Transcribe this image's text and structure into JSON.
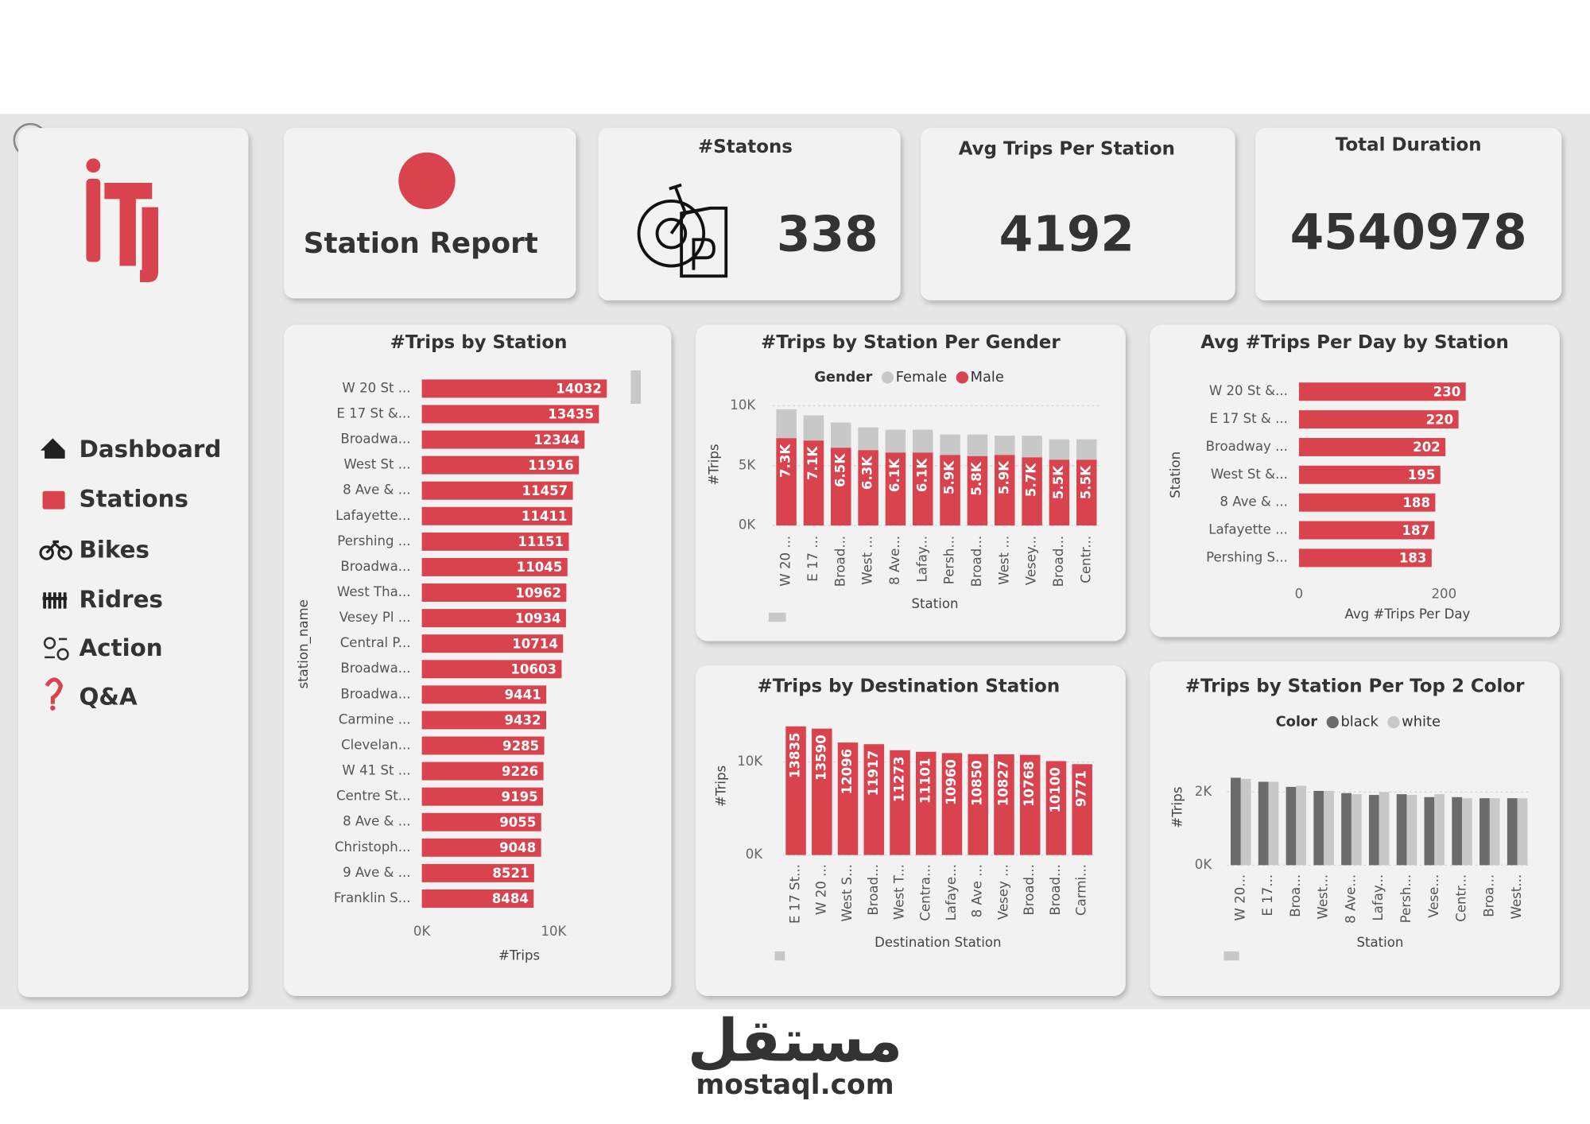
{
  "nav": {
    "items": [
      "Dashboard",
      "Stations",
      "Bikes",
      "Ridres",
      "Action",
      "Q&A"
    ],
    "active": 1
  },
  "header": {
    "title": "Station Report"
  },
  "kpis": [
    {
      "label": "#Statons",
      "value": 338
    },
    {
      "label": "Avg Trips Per Station",
      "value": 4192
    },
    {
      "label": "Total Duration",
      "value": 4540978
    }
  ],
  "watermark": {
    "arabic": "مستقل",
    "text": "mostaql.com"
  },
  "chart_data": [
    {
      "type": "bar",
      "horizontal": true,
      "title": "#Trips by Station",
      "color": "#d9434e",
      "data_labels": true,
      "categories": [
        "W 20 St ...",
        "E 17 St &...",
        "Broadwa...",
        "West St ...",
        "8 Ave & ...",
        "Lafayette...",
        "Pershing ...",
        "Broadwa...",
        "West Tha...",
        "Vesey Pl ...",
        "Central P...",
        "Broadwa...",
        "Broadwa...",
        "Carmine ...",
        "Clevelan...",
        "W 41 St ...",
        "Centre St...",
        "8 Ave & ...",
        "Christoph...",
        "9 Ave & ...",
        "Franklin S..."
      ],
      "values": [
        14032,
        13435,
        12344,
        11916,
        11457,
        11411,
        11151,
        11045,
        10962,
        10934,
        10714,
        10603,
        9441,
        9432,
        9285,
        9226,
        9195,
        9055,
        9048,
        8521,
        8484
      ],
      "xlim": [
        0,
        15000
      ],
      "xticks": [
        {
          "value": 0,
          "label": "0K"
        },
        {
          "value": 10000,
          "label": "10K"
        }
      ],
      "x_label": "#Trips",
      "y_label": "station_name"
    },
    {
      "type": "bar",
      "stacked": true,
      "grid": true,
      "title": "#Trips by Station Per Gender",
      "legend_title": "Gender",
      "categories": [
        "W 20 ...",
        "E 17 ...",
        "Broad...",
        "West ...",
        "8 Ave...",
        "Lafay...",
        "Persh...",
        "Broad...",
        "West ...",
        "Vesey...",
        "Broad...",
        "Centr..."
      ],
      "series": [
        {
          "name": "Female",
          "color": "#c8c8c8",
          "values": [
            2400,
            2100,
            2100,
            1900,
            1900,
            1900,
            1700,
            1800,
            1600,
            1800,
            1700,
            1700
          ]
        },
        {
          "name": "Male",
          "color": "#d9434e",
          "values": [
            7300,
            7100,
            6500,
            6300,
            6100,
            6100,
            5900,
            5800,
            5900,
            5700,
            5500,
            5500
          ],
          "value_labels": [
            "7.3K",
            "7.1K",
            "6.5K",
            "6.3K",
            "6.1K",
            "6.1K",
            "5.9K",
            "5.8K",
            "5.9K",
            "5.7K",
            "5.5K",
            "5.5K"
          ]
        }
      ],
      "ylim": [
        0,
        10500
      ],
      "yticks": [
        {
          "value": 0,
          "label": "0K"
        },
        {
          "value": 5000,
          "label": "5K"
        },
        {
          "value": 10000,
          "label": "10K"
        }
      ],
      "x_label": "Station",
      "y_label": "#Trips"
    },
    {
      "type": "bar",
      "horizontal": true,
      "title": "Avg #Trips Per Day by Station",
      "color": "#d9434e",
      "data_labels": true,
      "categories": [
        "W 20 St &...",
        "E 17 St & ...",
        "Broadway ...",
        "West St &...",
        "8 Ave & ...",
        "Lafayette ...",
        "Pershing S..."
      ],
      "values": [
        230,
        220,
        202,
        195,
        188,
        187,
        183
      ],
      "xlim": [
        0,
        300
      ],
      "xticks": [
        0,
        200
      ],
      "x_label": "Avg #Trips Per Day",
      "y_label": "Station"
    },
    {
      "type": "bar",
      "grid": true,
      "title": "#Trips by Destination Station",
      "color": "#d9434e",
      "data_labels": true,
      "categories": [
        "E 17 St...",
        "W 20 ...",
        "West S...",
        "Broad...",
        "West T...",
        "Centra...",
        "Lafaye...",
        "8 Ave ...",
        "Vesey ...",
        "Broad...",
        "Broad...",
        "Carmi..."
      ],
      "values": [
        13835,
        13590,
        12096,
        11917,
        11273,
        11101,
        10960,
        10850,
        10827,
        10768,
        10100,
        9771
      ],
      "ylim": [
        0,
        14500
      ],
      "yticks": [
        {
          "value": 0,
          "label": "0K"
        },
        {
          "value": 10000,
          "label": "10K"
        }
      ],
      "x_label": "Destination Station",
      "y_label": "#Trips"
    },
    {
      "type": "bar",
      "grid": true,
      "title": "#Trips by Station Per Top 2 Color",
      "legend_title": "Color",
      "categories": [
        "W 20...",
        "E 17...",
        "Broa...",
        "West...",
        "8 Ave...",
        "Lafay...",
        "Persh...",
        "Vese...",
        "Centr...",
        "Broa...",
        "West..."
      ],
      "series": [
        {
          "name": "black",
          "color": "#6b6b6b",
          "values": [
            2390,
            2280,
            2140,
            2030,
            1970,
            1920,
            1940,
            1860,
            1860,
            1830,
            1830
          ]
        },
        {
          "name": "white",
          "color": "#c8c8c8",
          "values": [
            2360,
            2280,
            2170,
            2030,
            1940,
            2000,
            1920,
            1940,
            1830,
            1830,
            1830
          ]
        }
      ],
      "ylim": [
        0,
        2800
      ],
      "yticks": [
        {
          "value": 0,
          "label": "0K"
        },
        {
          "value": 2000,
          "label": "2K"
        }
      ],
      "x_label": "Station",
      "y_label": "#Trips"
    }
  ]
}
